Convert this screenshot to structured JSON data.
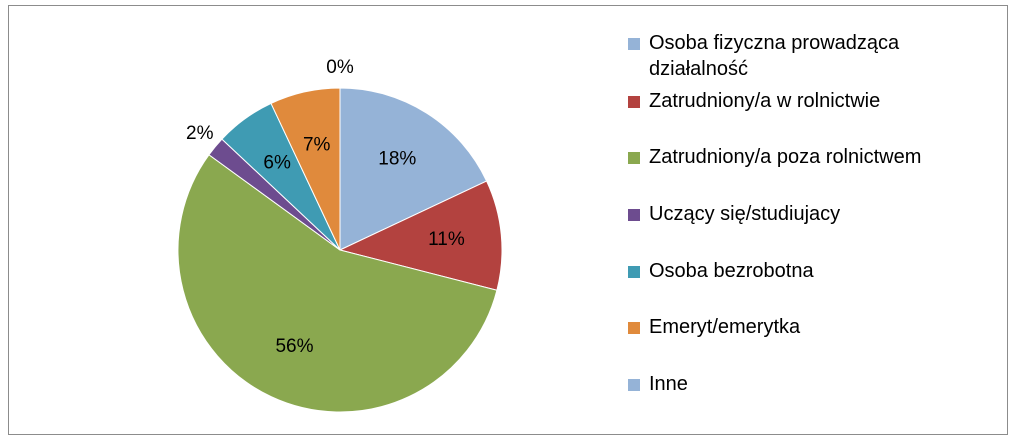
{
  "chart_data": {
    "type": "pie",
    "categories": [
      "Osoba fizyczna prowadząca działalność",
      "Zatrudniony/a w rolnictwie",
      "Zatrudniony/a poza rolnictwem",
      "Uczący się/studiujacy",
      "Osoba bezrobotna",
      "Emeryt/emerytka",
      "Inne"
    ],
    "values": [
      18,
      11,
      56,
      2,
      6,
      7,
      0
    ],
    "value_labels": [
      "18%",
      "11%",
      "56%",
      "2%",
      "6%",
      "7%",
      "0%"
    ],
    "colors": [
      "#95b3d7",
      "#b3423f",
      "#8aa84f",
      "#6d4c8f",
      "#3f9bb3",
      "#e08a3c",
      "#95b3d7"
    ],
    "legend": "right"
  }
}
